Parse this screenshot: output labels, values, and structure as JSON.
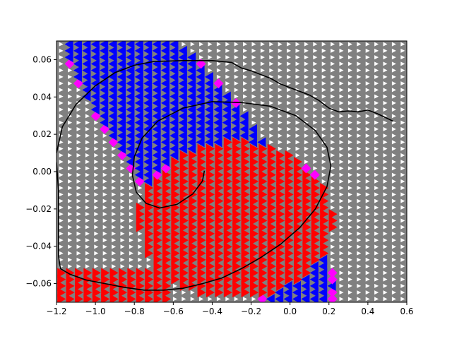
{
  "chart_data": {
    "type": "scatter",
    "title": "",
    "xlabel": "",
    "ylabel": "",
    "xlim": [
      -1.2,
      0.6
    ],
    "ylim": [
      -0.07,
      0.07
    ],
    "grid": false,
    "legend": "none",
    "x_ticks": [
      "−1.2",
      "−1.0",
      "−0.8",
      "−0.6",
      "−0.4",
      "−0.2",
      "0.0",
      "0.2",
      "0.4",
      "0.6"
    ],
    "x_tick_values": [
      -1.2,
      -1.0,
      -0.8,
      -0.6,
      -0.4,
      -0.2,
      0.0,
      0.2,
      0.4,
      0.6
    ],
    "y_ticks": [
      "−0.06",
      "−0.04",
      "−0.02",
      "0.00",
      "0.02",
      "0.04",
      "0.06"
    ],
    "y_tick_values": [
      -0.06,
      -0.04,
      -0.02,
      0.0,
      0.02,
      0.04,
      0.06
    ],
    "marker_grid": {
      "x_step": 0.045,
      "y_step": 0.0035
    },
    "colors": {
      "background_field": "#808080",
      "field_arrow": "#ffffff",
      "push_left": "#0000ff",
      "push_right": "#ff0000",
      "transition": "#ff00ff",
      "contour": "#000000"
    },
    "regions": {
      "blue_ellipse": {
        "center": [
          -0.48,
          0.01
        ],
        "radii": [
          0.72,
          0.05
        ],
        "angle_deg": -6
      },
      "red_ellipse": {
        "center": [
          -0.28,
          -0.026
        ],
        "radii": [
          0.5,
          0.042
        ],
        "angle_deg": 0
      },
      "red_bottom_band": {
        "x": [
          -1.2,
          -0.6
        ],
        "y": [
          -0.07,
          -0.052
        ]
      }
    },
    "series": [
      {
        "type": "line",
        "values": [
          [
            -1.2,
            0.01
          ],
          [
            -1.17,
            0.024
          ],
          [
            -1.1,
            0.036
          ],
          [
            -1.0,
            0.046
          ],
          [
            -0.9,
            0.053
          ],
          [
            -0.8,
            0.057
          ],
          [
            -0.7,
            0.059
          ],
          [
            -0.55,
            0.0595
          ],
          [
            -0.4,
            0.0595
          ],
          [
            -0.3,
            0.0585
          ],
          [
            -0.25,
            0.0555
          ],
          [
            -0.2,
            0.054
          ],
          [
            -0.15,
            0.052
          ],
          [
            -0.1,
            0.05
          ],
          [
            -0.05,
            0.047
          ],
          [
            0.0,
            0.045
          ],
          [
            0.05,
            0.043
          ],
          [
            0.1,
            0.041
          ],
          [
            0.15,
            0.038
          ],
          [
            0.2,
            0.034
          ],
          [
            0.25,
            0.032
          ],
          [
            0.3,
            0.0325
          ],
          [
            0.35,
            0.032
          ],
          [
            0.4,
            0.033
          ],
          [
            0.45,
            0.031
          ],
          [
            0.53,
            0.027
          ]
        ]
      },
      {
        "type": "line",
        "values": [
          [
            -1.2,
            0.005
          ],
          [
            -1.19,
            -0.01
          ],
          [
            -1.19,
            -0.028
          ],
          [
            -1.19,
            -0.045
          ],
          [
            -1.18,
            -0.052
          ],
          [
            -1.13,
            -0.055
          ],
          [
            -1.05,
            -0.058
          ],
          [
            -0.95,
            -0.06
          ],
          [
            -0.85,
            -0.062
          ],
          [
            -0.75,
            -0.0635
          ],
          [
            -0.65,
            -0.0635
          ],
          [
            -0.55,
            -0.0625
          ],
          [
            -0.45,
            -0.06
          ],
          [
            -0.35,
            -0.057
          ],
          [
            -0.25,
            -0.052
          ],
          [
            -0.15,
            -0.046
          ],
          [
            -0.05,
            -0.039
          ],
          [
            0.05,
            -0.03
          ],
          [
            0.13,
            -0.02
          ],
          [
            0.19,
            -0.008
          ],
          [
            0.21,
            0.003
          ],
          [
            0.19,
            0.013
          ],
          [
            0.13,
            0.022
          ],
          [
            0.03,
            0.03
          ],
          [
            -0.1,
            0.035
          ],
          [
            -0.25,
            0.037
          ],
          [
            -0.4,
            0.0375
          ],
          [
            -0.55,
            0.034
          ],
          [
            -0.68,
            0.027
          ],
          [
            -0.76,
            0.018
          ],
          [
            -0.8,
            0.008
          ],
          [
            -0.81,
            -0.002
          ],
          [
            -0.79,
            -0.011
          ],
          [
            -0.74,
            -0.017
          ],
          [
            -0.67,
            -0.0195
          ],
          [
            -0.58,
            -0.0175
          ],
          [
            -0.5,
            -0.012
          ],
          [
            -0.45,
            -0.005
          ],
          [
            -0.44,
            0.0005
          ]
        ]
      }
    ]
  }
}
